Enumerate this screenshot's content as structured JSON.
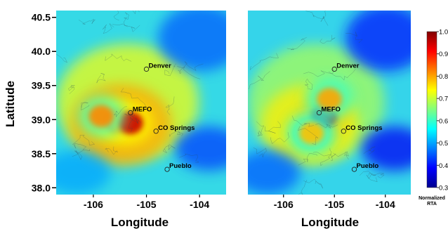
{
  "chart_data": [
    {
      "type": "heatmap",
      "panel": "left",
      "xlabel": "Longitude",
      "ylabel": "Latitude",
      "xticks": [
        -106,
        -105,
        -104
      ],
      "yticks": [
        38.0,
        38.5,
        39.0,
        39.5,
        40.0,
        40.5
      ],
      "ytick_labels": [
        "38.0",
        "38.5",
        "39.0",
        "39.5",
        "40.0",
        "40.5"
      ],
      "xlim": [
        -106.7,
        -103.5
      ],
      "ylim": [
        37.9,
        40.6
      ],
      "background_value": 0.55,
      "hotspots": [
        {
          "lon": -105.55,
          "lat": 38.98,
          "value": 0.93
        },
        {
          "lon": -105.3,
          "lat": 38.95,
          "value": 0.95
        },
        {
          "lon": -105.85,
          "lat": 39.05,
          "value": 0.82
        }
      ],
      "cities": [
        {
          "name": "Denver",
          "lon": -105.0,
          "lat": 39.74
        },
        {
          "name": "MEFO",
          "lon": -105.3,
          "lat": 39.1
        },
        {
          "name": "CO Springs",
          "lon": -104.82,
          "lat": 38.83
        },
        {
          "name": "Pueblo",
          "lon": -104.61,
          "lat": 38.27
        }
      ]
    },
    {
      "type": "heatmap",
      "panel": "right",
      "xlabel": "Longitude",
      "ylabel": "",
      "xticks": [
        -106,
        -105,
        -104
      ],
      "xlim": [
        -106.7,
        -103.5
      ],
      "ylim": [
        37.9,
        40.6
      ],
      "background_value": 0.5,
      "hotspots": [
        {
          "lon": -105.2,
          "lat": 39.05,
          "value": 0.97
        },
        {
          "lon": -105.1,
          "lat": 39.3,
          "value": 0.8
        },
        {
          "lon": -105.45,
          "lat": 38.8,
          "value": 0.78
        }
      ],
      "cities": [
        {
          "name": "Denver",
          "lon": -105.0,
          "lat": 39.74
        },
        {
          "name": "MEFO",
          "lon": -105.3,
          "lat": 39.1
        },
        {
          "name": "CO Springs",
          "lon": -104.82,
          "lat": 38.83
        },
        {
          "name": "Pueblo",
          "lon": -104.61,
          "lat": 38.27
        }
      ]
    }
  ],
  "colorbar": {
    "min": 0.3,
    "max": 1.0,
    "ticks": [
      "0.3",
      "0.4",
      "0.5",
      "0.6",
      "0.7",
      "0.8",
      "0.9",
      "1.0"
    ],
    "title_line1": "Normalized",
    "title_line2": "RTA",
    "colormap": "jet"
  }
}
